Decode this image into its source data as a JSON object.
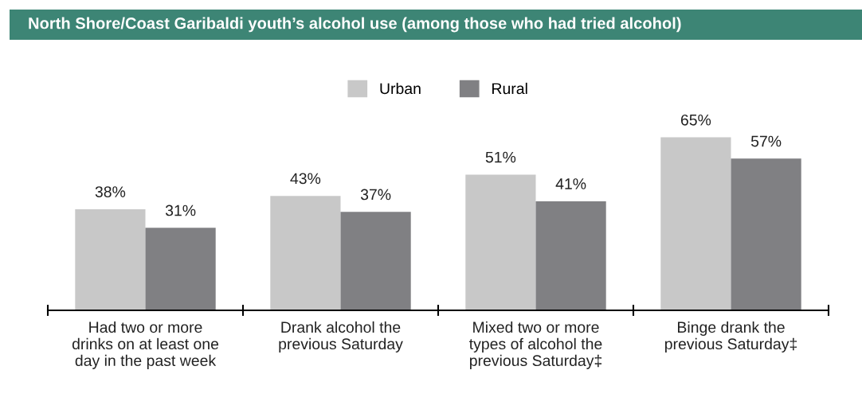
{
  "chart_data": {
    "type": "bar",
    "title": "North Shore/Coast Garibaldi youth’s alcohol use (among those who had tried alcohol)",
    "categories": [
      "Had two or more\ndrinks on at least one\nday in the past week",
      "Drank alcohol the\nprevious Saturday",
      "Mixed two or more\ntypes of alcohol the\nprevious Saturday‡",
      "Binge drank the\nprevious Saturday‡"
    ],
    "series": [
      {
        "name": "Urban",
        "color": "#c8c8c8",
        "values": [
          38,
          43,
          51,
          65
        ],
        "value_labels": [
          "38%",
          "43%",
          "51%",
          "65%"
        ]
      },
      {
        "name": "Rural",
        "color": "#808083",
        "values": [
          31,
          37,
          41,
          57
        ],
        "value_labels": [
          "31%",
          "37%",
          "41%",
          "57%"
        ]
      }
    ],
    "legend": "top",
    "grid": false
  }
}
